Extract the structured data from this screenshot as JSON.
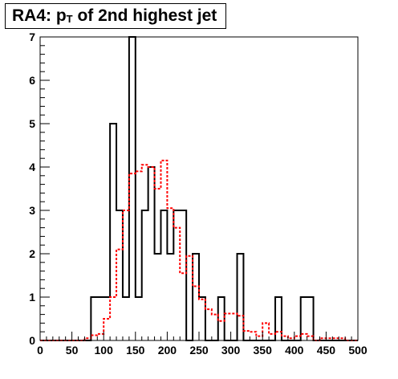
{
  "title": {
    "prefix": "RA4: p",
    "subscript": "T",
    "suffix": " of 2nd highest jet"
  },
  "chart_data": {
    "type": "histogram",
    "title": "RA4: p_T of 2nd highest jet",
    "xlabel": "",
    "ylabel": "",
    "xlim": [
      0,
      500
    ],
    "ylim": [
      0,
      7
    ],
    "x_ticks": [
      0,
      50,
      100,
      150,
      200,
      250,
      300,
      350,
      400,
      450,
      500
    ],
    "y_ticks": [
      0,
      1,
      2,
      3,
      4,
      5,
      6,
      7
    ],
    "bin_width": 10,
    "bin_edges_start": 0,
    "grid": false,
    "series": [
      {
        "style": "solid",
        "color": "#000000",
        "values": [
          0,
          0,
          0,
          0,
          0,
          0,
          0,
          0,
          1,
          1,
          1,
          5,
          3,
          1,
          7,
          1,
          3,
          4,
          2,
          3,
          2,
          3,
          3,
          0,
          2,
          1,
          0,
          0,
          1,
          0,
          0,
          2,
          0,
          0,
          0,
          0,
          0,
          1,
          0,
          0,
          0,
          1,
          1,
          0,
          0,
          0,
          0,
          0,
          0,
          0
        ]
      },
      {
        "style": "dashed",
        "color": "#ff0000",
        "values": [
          0,
          0,
          0,
          0,
          0,
          0,
          0,
          0.05,
          0.12,
          0.15,
          0.5,
          1.0,
          2.1,
          3.0,
          3.85,
          3.9,
          4.05,
          4.0,
          3.5,
          4.15,
          3.05,
          2.6,
          1.55,
          1.95,
          1.25,
          0.95,
          0.72,
          0.6,
          0.45,
          0.62,
          0.62,
          0.57,
          0.22,
          0.2,
          0.1,
          0.4,
          0.15,
          0.2,
          0.1,
          0.05,
          0.1,
          0.15,
          0.1,
          0,
          0.05,
          0.05,
          0.05,
          0.05,
          0,
          0
        ]
      }
    ]
  }
}
